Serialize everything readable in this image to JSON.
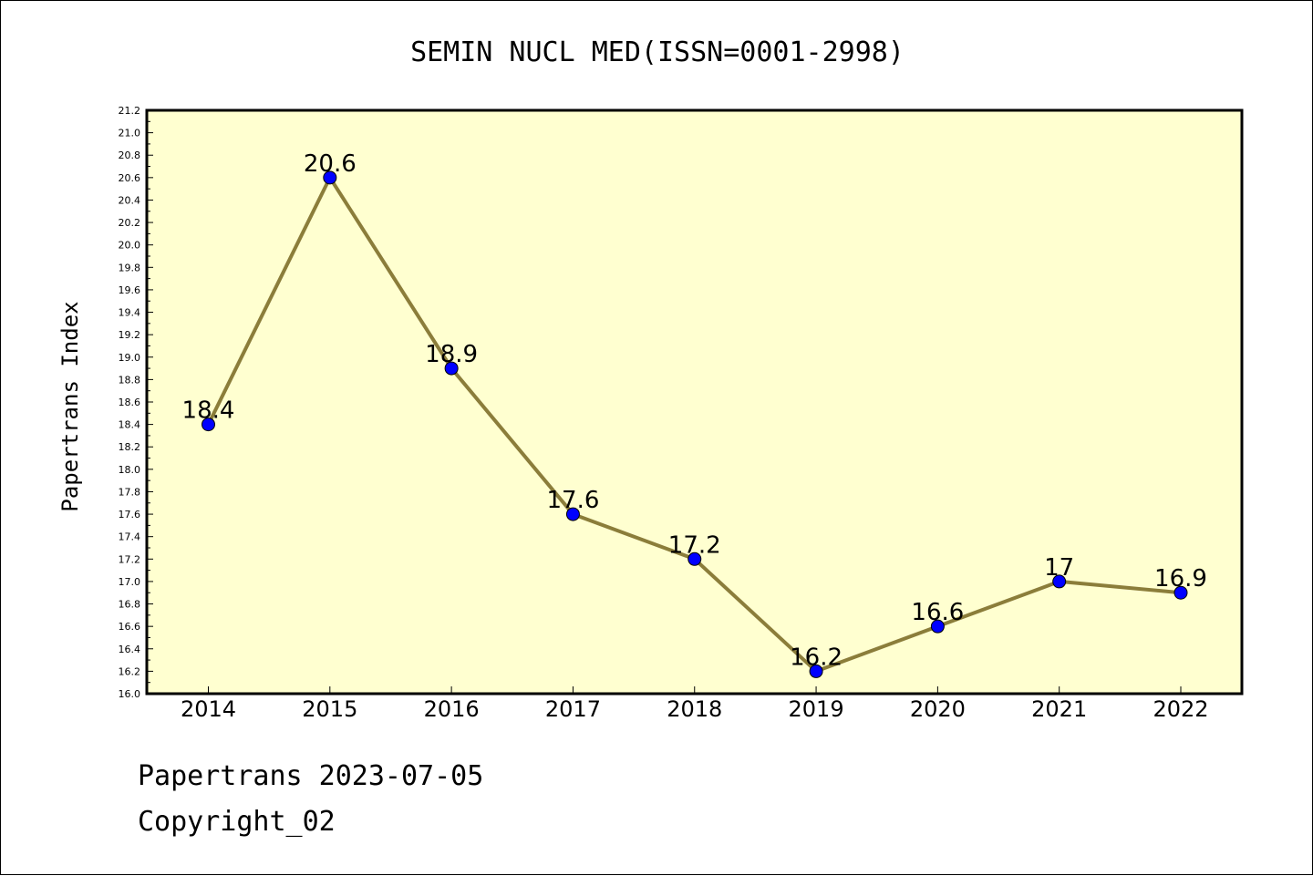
{
  "footer": {
    "line1": "Papertrans 2023-07-05",
    "line2": "Copyright_02"
  },
  "colors": {
    "plot_background": "#ffffd0",
    "line": "#8b7d3a",
    "marker": "#0000ff",
    "axis": "#000000"
  },
  "chart_data": {
    "type": "line",
    "title": "SEMIN NUCL MED(ISSN=0001-2998)",
    "xlabel": "",
    "ylabel": "Papertrans Index",
    "categories": [
      "2014",
      "2015",
      "2016",
      "2017",
      "2018",
      "2019",
      "2020",
      "2021",
      "2022"
    ],
    "series": [
      {
        "values": [
          18.4,
          20.6,
          18.9,
          17.6,
          17.2,
          16.2,
          16.6,
          17,
          16.9
        ],
        "labels": [
          "18.4",
          "20.6",
          "18.9",
          "17.6",
          "17.2",
          "16.2",
          "16.6",
          "17",
          "16.9"
        ]
      }
    ],
    "ylim": [
      16.0,
      21.2
    ],
    "yticks": [
      "16.0",
      "16.2",
      "16.4",
      "16.6",
      "16.8",
      "17.0",
      "17.2",
      "17.4",
      "17.6",
      "17.8",
      "18.0",
      "18.2",
      "18.4",
      "18.6",
      "18.8",
      "19.0",
      "19.2",
      "19.4",
      "19.6",
      "19.8",
      "20.0",
      "20.2",
      "20.4",
      "20.6",
      "20.8",
      "21.0",
      "21.2"
    ],
    "grid": false,
    "legend": "none"
  }
}
